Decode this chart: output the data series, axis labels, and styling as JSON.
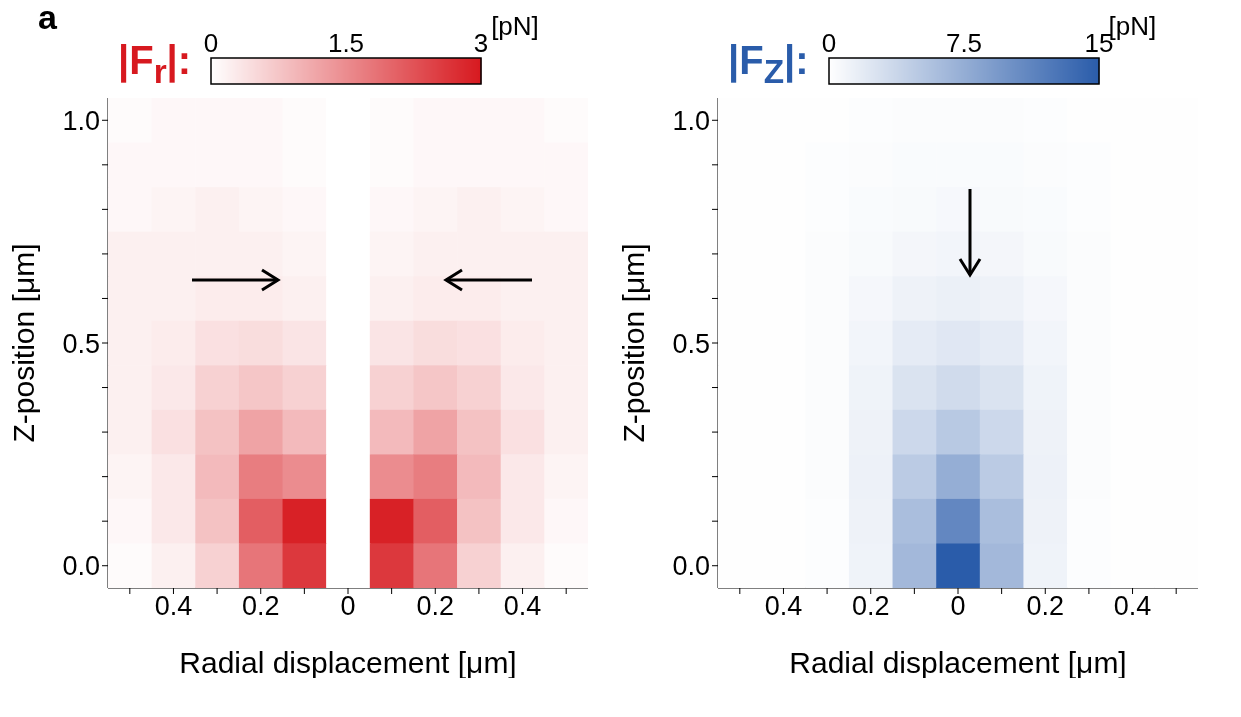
{
  "chart_data": [
    {
      "type": "heatmap",
      "title": "a",
      "annotations": [
        "[pN]"
      ],
      "clabel": "|F$_{r}$|:",
      "xlabel": "Radial displacement [μm]",
      "ylabel": "Z-position [μm]",
      "color": "#d7191f",
      "categories": [
        null,
        "0.4",
        null,
        "0.2",
        null,
        "0",
        null,
        "0.2",
        null,
        "0.4",
        null
      ],
      "y_categories": [
        "1.0",
        null,
        null,
        null,
        null,
        "0.5",
        null,
        null,
        null,
        null,
        "0.0"
      ],
      "cells": [
        [
          0.05,
          0.1,
          0.1,
          0.1,
          0.05,
          0,
          0.05,
          0.1,
          0.1,
          0.1,
          0.05
        ],
        [
          0.1,
          0.1,
          0.1,
          0.1,
          0.05,
          0,
          0.05,
          0.1,
          0.1,
          0.1,
          0.1
        ],
        [
          0.1,
          0.15,
          0.2,
          0.15,
          0.1,
          0,
          0.1,
          0.15,
          0.2,
          0.15,
          0.1
        ],
        [
          0.2,
          0.2,
          0.2,
          0.2,
          0.15,
          0,
          0.15,
          0.2,
          0.2,
          0.2,
          0.2
        ],
        [
          0.2,
          0.2,
          0.25,
          0.25,
          0.2,
          0,
          0.2,
          0.25,
          0.25,
          0.2,
          0.2
        ],
        [
          0.2,
          0.25,
          0.4,
          0.45,
          0.35,
          0,
          0.35,
          0.45,
          0.4,
          0.25,
          0.2
        ],
        [
          0.2,
          0.3,
          0.6,
          0.75,
          0.6,
          0,
          0.6,
          0.75,
          0.6,
          0.3,
          0.2
        ],
        [
          0.2,
          0.4,
          0.8,
          1.2,
          0.9,
          0,
          0.9,
          1.2,
          0.8,
          0.4,
          0.2
        ],
        [
          0.15,
          0.3,
          0.9,
          1.7,
          1.5,
          0,
          1.5,
          1.7,
          0.9,
          0.3,
          0.15
        ],
        [
          0.1,
          0.3,
          0.8,
          2.1,
          2.9,
          0,
          2.9,
          2.1,
          0.8,
          0.3,
          0.1
        ],
        [
          0.05,
          0.2,
          0.6,
          1.8,
          2.6,
          0,
          2.6,
          1.8,
          0.6,
          0.2,
          0.05
        ]
      ],
      "clim": [
        0,
        3
      ],
      "cticks": [
        0,
        1.5,
        3
      ]
    },
    {
      "type": "heatmap",
      "annotations": [
        "[pN]"
      ],
      "clabel": "|F$_{Z}$|:",
      "xlabel": "Radial displacement [μm]",
      "ylabel": "Z-position [μm]",
      "color": "#2a5caa",
      "categories": [
        null,
        "0.4",
        null,
        "0.2",
        null,
        "0",
        null,
        "0.2",
        null,
        "0.4",
        null
      ],
      "y_categories": [
        "1.0",
        null,
        null,
        null,
        null,
        "0.5",
        null,
        null,
        null,
        null,
        "0.0"
      ],
      "cells": [
        [
          0.1,
          0.1,
          0.1,
          0.2,
          0.3,
          0.3,
          0.3,
          0.2,
          0.1,
          0.1,
          0.1
        ],
        [
          0.1,
          0.1,
          0.2,
          0.3,
          0.4,
          0.4,
          0.4,
          0.3,
          0.2,
          0.1,
          0.1
        ],
        [
          0.1,
          0.1,
          0.2,
          0.4,
          0.5,
          0.6,
          0.5,
          0.4,
          0.2,
          0.1,
          0.1
        ],
        [
          0.1,
          0.1,
          0.3,
          0.5,
          0.8,
          0.9,
          0.8,
          0.5,
          0.3,
          0.1,
          0.1
        ],
        [
          0.1,
          0.1,
          0.3,
          0.7,
          1.2,
          1.4,
          1.2,
          0.7,
          0.3,
          0.1,
          0.1
        ],
        [
          0.1,
          0.1,
          0.3,
          0.9,
          1.8,
          2.2,
          1.8,
          0.9,
          0.3,
          0.1,
          0.1
        ],
        [
          0.1,
          0.1,
          0.3,
          1.1,
          2.6,
          3.3,
          2.6,
          1.1,
          0.3,
          0.1,
          0.1
        ],
        [
          0.1,
          0.1,
          0.3,
          1.2,
          3.6,
          5,
          3.6,
          1.2,
          0.3,
          0.1,
          0.1
        ],
        [
          0.1,
          0.1,
          0.3,
          1.3,
          4.8,
          7.5,
          4.8,
          1.3,
          0.3,
          0.1,
          0.1
        ],
        [
          0.1,
          0.1,
          0.2,
          1.2,
          6,
          11,
          6,
          1.2,
          0.2,
          0.1,
          0.1
        ],
        [
          0.1,
          0.1,
          0.2,
          1.1,
          6.5,
          15,
          6.5,
          1.1,
          0.2,
          0.1,
          0.1
        ]
      ],
      "clim": [
        0,
        15
      ],
      "cticks": [
        0,
        7.5,
        15
      ]
    }
  ]
}
